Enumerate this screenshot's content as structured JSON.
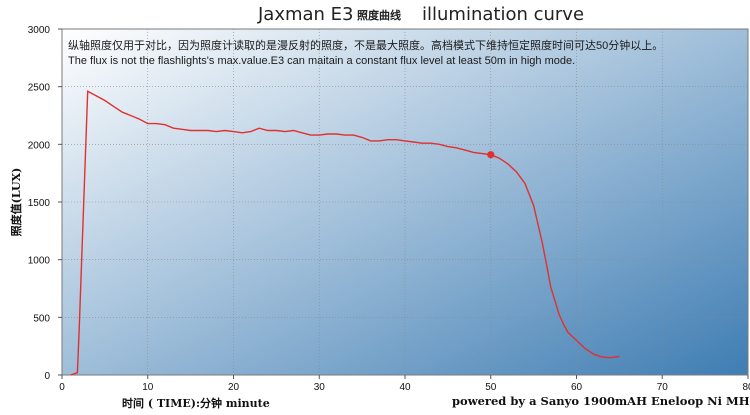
{
  "chart_data": {
    "type": "line",
    "title": "Jaxman E3",
    "title_cn": "照度曲线",
    "title_en": "illumination curve",
    "annotations": [
      "纵轴照度仅用于对比，因为照度计读取的是漫反射的照度，不是最大照度。高档模式下维持恒定照度时间可达50分钟以上。",
      "The flux is not the flashlights's max.value.E3 can maitain a constant flux level at least 50m in high mode."
    ],
    "ylabel": "照度值(LUX)",
    "xlabel": "时间 ( TIME):分钟 minute",
    "footer": "powered by a Sanyo 1900mAH Eneloop Ni MH",
    "xlim": [
      0,
      80
    ],
    "ylim": [
      0,
      3000
    ],
    "x_ticks": [
      0,
      10,
      20,
      30,
      40,
      50,
      60,
      70,
      80
    ],
    "y_ticks": [
      0,
      500,
      1000,
      1500,
      2000,
      2500,
      3000
    ],
    "grid": true,
    "line_color": "#e03030",
    "background_gradient": [
      "#ffffff",
      "#3f7db3"
    ],
    "marker": {
      "x": 50,
      "y": 1910
    },
    "series": [
      {
        "x": [
          1,
          1.8,
          2.0,
          3.0,
          4,
          5,
          6,
          7,
          8,
          9,
          10,
          11,
          12,
          13,
          14,
          15,
          16,
          17,
          18,
          19,
          20,
          21,
          22,
          23,
          24,
          25,
          26,
          27,
          28,
          29,
          30,
          31,
          32,
          33,
          34,
          35,
          36,
          37,
          38,
          39,
          40,
          41,
          42,
          43,
          44,
          45,
          46,
          47,
          48,
          49,
          50,
          51,
          52,
          53,
          54,
          55,
          56,
          56.5,
          57,
          57.5,
          58,
          58.5,
          59,
          60,
          61,
          62,
          63,
          64,
          65
        ],
        "y": [
          0,
          20,
          400,
          2460,
          2420,
          2380,
          2330,
          2280,
          2250,
          2220,
          2180,
          2180,
          2170,
          2140,
          2130,
          2120,
          2120,
          2120,
          2110,
          2120,
          2110,
          2100,
          2110,
          2140,
          2120,
          2120,
          2110,
          2120,
          2100,
          2080,
          2080,
          2090,
          2090,
          2080,
          2080,
          2060,
          2030,
          2030,
          2040,
          2040,
          2030,
          2020,
          2010,
          2010,
          2000,
          1980,
          1970,
          1950,
          1930,
          1920,
          1910,
          1880,
          1830,
          1760,
          1660,
          1470,
          1150,
          960,
          760,
          640,
          520,
          440,
          370,
          300,
          230,
          180,
          155,
          150,
          160
        ]
      }
    ]
  }
}
